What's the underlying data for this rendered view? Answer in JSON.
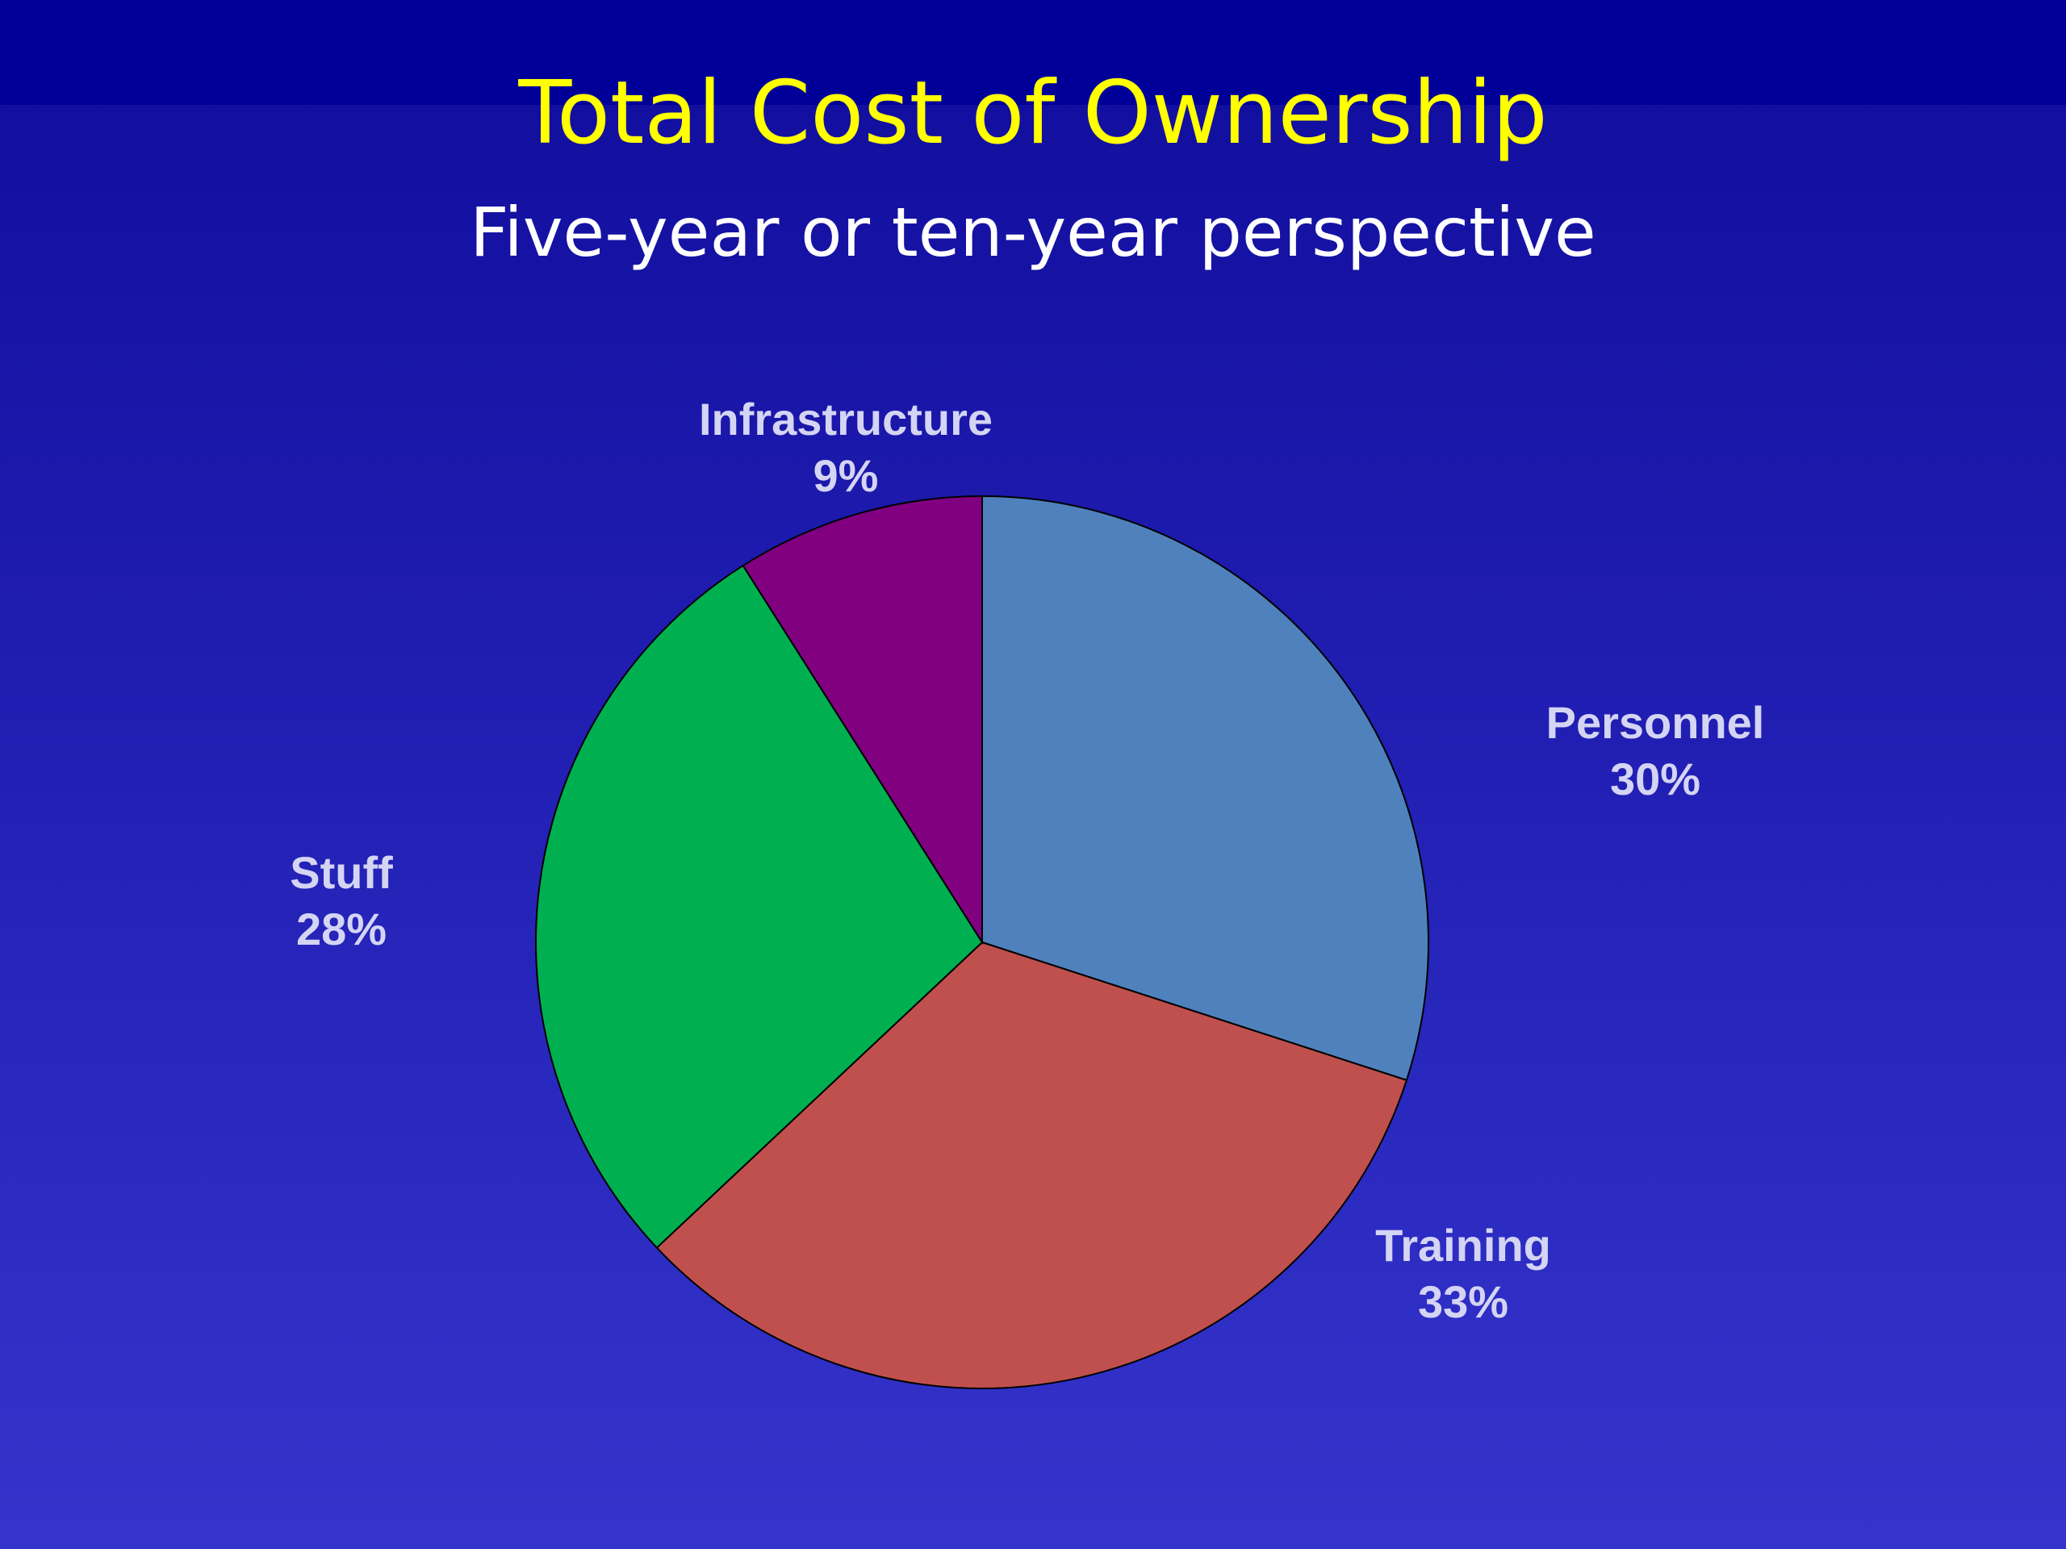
{
  "chart_data": {
    "type": "pie",
    "title": "Total Cost of Ownership",
    "subtitle": "Five-year or ten-year perspective",
    "categories": [
      "Personnel",
      "Training",
      "Stuff",
      "Infrastructure"
    ],
    "values": [
      30,
      33,
      28,
      9
    ],
    "value_labels": [
      "30%",
      "33%",
      "28%",
      "9%"
    ],
    "colors": [
      "#4f81bd",
      "#c0504d",
      "#00b050",
      "#800080"
    ]
  }
}
